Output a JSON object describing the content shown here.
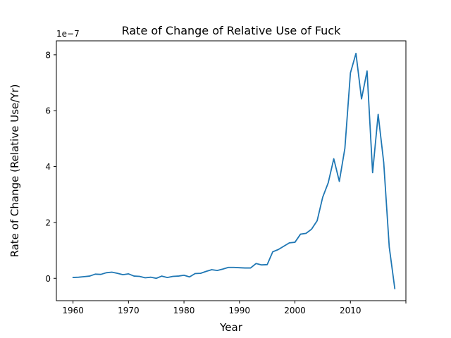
{
  "chart_data": {
    "type": "line",
    "title": "Rate of Change of Relative Use of Fuck",
    "xlabel": "Year",
    "ylabel": "Rate of Change (Relative Use/Yr)",
    "y_offset_label": "1e−7",
    "xlim": [
      1957,
      2020
    ],
    "ylim": [
      -0.8,
      8.5
    ],
    "y_scale_factor": 1e-07,
    "grid": false,
    "legend": "none",
    "line_color": "#1f77b4",
    "x_ticks": [
      1960,
      1970,
      1980,
      1990,
      2000,
      2010,
      2020
    ],
    "x_tick_labels": [
      "1960",
      "1970",
      "1980",
      "1990",
      "2000",
      "2010",
      ""
    ],
    "y_ticks": [
      0,
      2,
      4,
      6,
      8
    ],
    "y_tick_labels": [
      "0",
      "2",
      "4",
      "6",
      "8"
    ],
    "series": [
      {
        "x": [
          1960,
          1961,
          1962,
          1963,
          1964,
          1965,
          1966,
          1967,
          1968,
          1969,
          1970,
          1971,
          1972,
          1973,
          1974,
          1975,
          1976,
          1977,
          1978,
          1979,
          1980,
          1981,
          1982,
          1983,
          1984,
          1985,
          1986,
          1987,
          1988,
          1989,
          1990,
          1991,
          1992,
          1993,
          1994,
          1995,
          1996,
          1997,
          1998,
          1999,
          2000,
          2001,
          2002,
          2003,
          2004,
          2005,
          2006,
          2007,
          2008,
          2009,
          2010,
          2011,
          2012,
          2013,
          2014,
          2015,
          2016,
          2017,
          2018
        ],
        "y": [
          0.03,
          0.04,
          0.06,
          0.08,
          0.15,
          0.14,
          0.2,
          0.22,
          0.18,
          0.13,
          0.16,
          0.08,
          0.07,
          0.02,
          0.04,
          0.0,
          0.08,
          0.03,
          0.07,
          0.08,
          0.11,
          0.05,
          0.17,
          0.18,
          0.25,
          0.31,
          0.28,
          0.33,
          0.39,
          0.39,
          0.38,
          0.37,
          0.37,
          0.53,
          0.48,
          0.49,
          0.95,
          1.03,
          1.15,
          1.27,
          1.29,
          1.58,
          1.61,
          1.76,
          2.06,
          2.9,
          3.42,
          4.28,
          3.47,
          4.65,
          7.35,
          8.05,
          6.42,
          7.42,
          3.78,
          5.87,
          4.15,
          1.12,
          -0.37
        ]
      }
    ]
  }
}
